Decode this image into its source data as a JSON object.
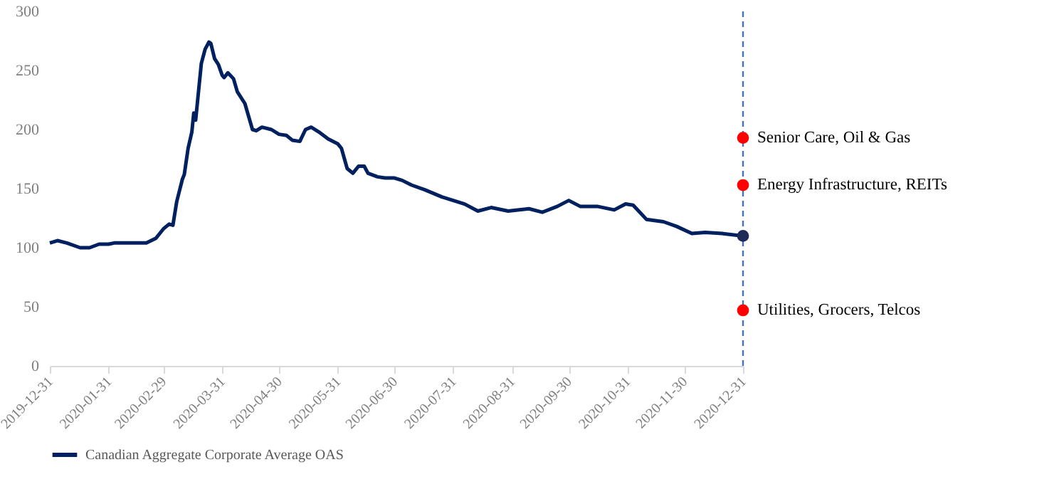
{
  "chart_data": {
    "type": "line",
    "legend": "bottom",
    "grid": false,
    "ylim": [
      0,
      300
    ],
    "yticks": [
      0,
      50,
      100,
      150,
      200,
      250,
      300
    ],
    "xlim": [
      "2019-12-31",
      "2020-12-31"
    ],
    "xticks": [
      "2019-12-31",
      "2020-01-31",
      "2020-02-29",
      "2020-03-31",
      "2020-04-30",
      "2020-05-31",
      "2020-06-30",
      "2020-07-31",
      "2020-08-31",
      "2020-09-30",
      "2020-10-31",
      "2020-11-30",
      "2020-12-31"
    ],
    "ref_lines": [
      {
        "axis": "x",
        "value": "2020-12-31",
        "color": "#4472c4",
        "line_style": "dashed"
      }
    ],
    "annotations": [
      {
        "text": "Senior Care, Oil & Gas",
        "x": "2020-12-31",
        "y": 193
      },
      {
        "text": "Energy Infrastructure, REITs",
        "x": "2020-12-31",
        "y": 153
      },
      {
        "text": "Utilities, Grocers, Telcos",
        "x": "2020-12-31",
        "y": 47
      }
    ],
    "series": [
      {
        "name": "Canadian Aggregate Corporate Average OAS",
        "color": "#002060",
        "x": [
          "2019-12-31",
          "2020-01-04",
          "2020-01-09",
          "2020-01-16",
          "2020-01-21",
          "2020-01-26",
          "2020-01-31",
          "2020-02-03",
          "2020-02-12",
          "2020-02-20",
          "2020-02-25",
          "2020-02-29",
          "2020-03-03",
          "2020-03-05",
          "2020-03-07",
          "2020-03-10",
          "2020-03-11",
          "2020-03-13",
          "2020-03-15",
          "2020-03-16",
          "2020-03-17",
          "2020-03-20",
          "2020-03-22",
          "2020-03-24",
          "2020-03-25",
          "2020-03-27",
          "2020-03-29",
          "2020-03-31",
          "2020-04-01",
          "2020-04-03",
          "2020-04-06",
          "2020-04-08",
          "2020-04-12",
          "2020-04-16",
          "2020-04-18",
          "2020-04-21",
          "2020-04-26",
          "2020-04-30",
          "2020-05-04",
          "2020-05-07",
          "2020-05-11",
          "2020-05-14",
          "2020-05-17",
          "2020-05-21",
          "2020-05-26",
          "2020-05-31",
          "2020-06-02",
          "2020-06-05",
          "2020-06-08",
          "2020-06-11",
          "2020-06-14",
          "2020-06-16",
          "2020-06-21",
          "2020-06-25",
          "2020-06-30",
          "2020-07-04",
          "2020-07-09",
          "2020-07-16",
          "2020-07-25",
          "2020-07-31",
          "2020-08-06",
          "2020-08-13",
          "2020-08-20",
          "2020-08-29",
          "2020-09-09",
          "2020-09-16",
          "2020-09-24",
          "2020-09-30",
          "2020-10-06",
          "2020-10-15",
          "2020-10-24",
          "2020-10-30",
          "2020-11-03",
          "2020-11-10",
          "2020-11-19",
          "2020-11-26",
          "2020-12-04",
          "2020-12-11",
          "2020-12-20",
          "2020-12-31"
        ],
        "values": [
          104,
          106,
          104,
          100,
          100,
          103,
          103,
          104,
          104,
          104,
          108,
          116,
          120,
          119,
          139,
          158,
          162,
          184,
          198,
          214,
          208,
          256,
          268,
          274,
          273,
          260,
          255,
          246,
          244,
          248,
          243,
          232,
          222,
          200,
          199,
          202,
          200,
          196,
          195,
          191,
          190,
          200,
          202,
          198,
          192,
          188,
          184,
          167,
          163,
          169,
          169,
          163,
          160,
          159,
          159,
          157,
          153,
          149,
          143,
          140,
          137,
          131,
          134,
          131,
          133,
          130,
          135,
          140,
          135,
          135,
          132,
          137,
          136,
          124,
          122,
          118,
          112,
          113,
          112,
          110
        ]
      },
      {
        "color": "#ff0000",
        "type": "scatter",
        "marker": "circle",
        "x": [
          "2020-12-31",
          "2020-12-31",
          "2020-12-31"
        ],
        "values": [
          193,
          153,
          47
        ]
      },
      {
        "color": "#1f2a5a",
        "type": "scatter",
        "marker": "circle",
        "x": [
          "2020-12-31"
        ],
        "values": [
          110
        ]
      }
    ]
  }
}
